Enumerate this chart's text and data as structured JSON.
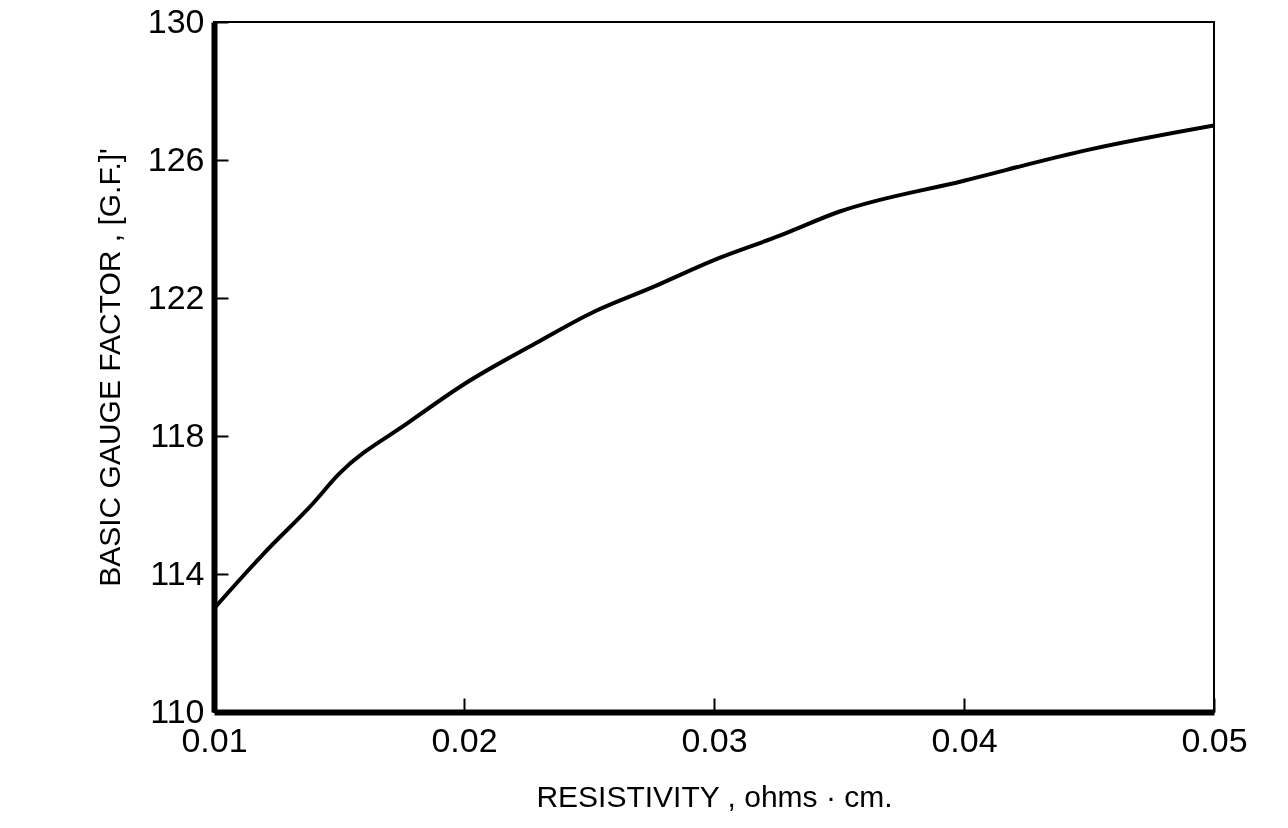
{
  "chart_data": {
    "type": "line",
    "xlabel": "RESISTIVITY ,   ohms · cm.",
    "ylabel": "BASIC GAUGE FACTOR , [G.F.]'",
    "x": [
      0.01,
      0.012,
      0.0139,
      0.015,
      0.0178,
      0.02,
      0.0229,
      0.0252,
      0.0275,
      0.03,
      0.0326,
      0.035,
      0.04,
      0.045,
      0.05
    ],
    "series": [
      {
        "color": "#000000",
        "values": [
          113.0,
          114.6,
          116.0,
          116.9,
          118.4,
          119.5,
          120.7,
          121.6,
          122.3,
          123.1,
          123.8,
          124.5,
          125.4,
          126.3,
          127.0
        ]
      }
    ],
    "xlim": [
      0.01,
      0.05
    ],
    "xticks": [
      0.01,
      0.02,
      0.03,
      0.04,
      0.05
    ],
    "ylim": [
      110,
      130
    ],
    "yticks": [
      110,
      114,
      118,
      122,
      126,
      130
    ]
  }
}
